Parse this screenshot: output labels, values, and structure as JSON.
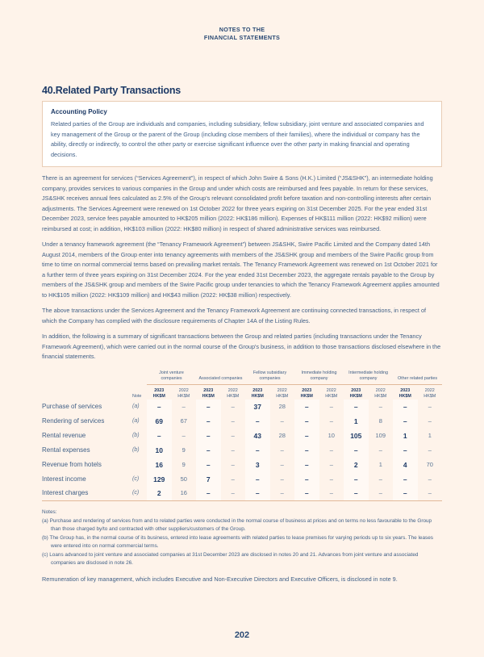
{
  "header": {
    "line1": "NOTES TO THE",
    "line2": "FINANCIAL STATEMENTS"
  },
  "title": "40.Related Party Transactions",
  "policy": {
    "heading": "Accounting Policy",
    "text": "Related parties of the Group are individuals and companies, including subsidiary, fellow subsidiary, joint venture and associated companies and key management of the Group or the parent of the Group (including close members of their families), where the individual or company has the ability, directly or indirectly, to control the other party or exercise significant influence over the other party in making financial and operating decisions."
  },
  "paragraphs": [
    "There is an agreement for services (“Services Agreement”), in respect of which John Swire & Sons (H.K.) Limited (“JS&SHK”), an intermediate holding company, provides services to various companies in the Group and under which costs are reimbursed and fees payable. In return for these services, JS&SHK receives annual fees calculated as 2.5% of the Group's relevant consolidated profit before taxation and non-controlling interests after certain adjustments. The Services Agreement were renewed on 1st October 2022 for three years expiring on 31st December 2025. For the year ended 31st December 2023, service fees payable amounted to HK$205 million (2022: HK$186 million). Expenses of HK$111 million (2022: HK$92 million) were reimbursed at cost; in addition, HK$103 million (2022: HK$80 million) in respect of shared administrative services was reimbursed.",
    "Under a tenancy framework agreement (the “Tenancy Framework Agreement”) between JS&SHK, Swire Pacific Limited and the Company dated 14th August 2014, members of the Group enter into tenancy agreements with members of the JS&SHK group and members of the Swire Pacific group from time to time on normal commercial terms based on prevailing market rentals. The Tenancy Framework Agreement was renewed on 1st October 2021 for a further term of three years expiring on 31st December 2024. For the year ended 31st December 2023, the aggregate rentals payable to the Group by members of the JS&SHK group and members of the Swire Pacific group under tenancies to which the Tenancy Framework Agreement applies amounted to HK$105 million (2022: HK$109 million) and HK$43 million (2022: HK$38 million) respectively.",
    "The above transactions under the Services Agreement and the Tenancy Framework Agreement are continuing connected transactions, in respect of which the Company has complied with the disclosure requirements of Chapter 14A of the Listing Rules.",
    "In addition, the following is a summary of significant transactions between the Group and related parties (including transactions under the Tenancy Framework Agreement), which were carried out in the normal course of the Group's business, in addition to those transactions disclosed elsewhere in the financial statements."
  ],
  "table": {
    "groups": [
      "Joint venture companies",
      "Associated companies",
      "Fellow subsidiary companies",
      "Immediate holding company",
      "Intermediate holding company",
      "Other related parties"
    ],
    "note_label": "Note",
    "year_2023": "2023",
    "year_2022": "2022",
    "unit": "HK$M",
    "rows": [
      {
        "label": "Purchase of services",
        "note": "(a)",
        "values": [
          "–",
          "–",
          "–",
          "–",
          "37",
          "28",
          "–",
          "–",
          "–",
          "–",
          "–",
          "–"
        ]
      },
      {
        "label": "Rendering of services",
        "note": "(a)",
        "values": [
          "69",
          "67",
          "–",
          "–",
          "–",
          "–",
          "–",
          "–",
          "1",
          "8",
          "–",
          "–"
        ]
      },
      {
        "label": "Rental revenue",
        "note": "(b)",
        "values": [
          "–",
          "–",
          "–",
          "–",
          "43",
          "28",
          "–",
          "10",
          "105",
          "109",
          "1",
          "1"
        ]
      },
      {
        "label": "Rental expenses",
        "note": "(b)",
        "values": [
          "10",
          "9",
          "–",
          "–",
          "–",
          "–",
          "–",
          "–",
          "–",
          "–",
          "–",
          "–"
        ]
      },
      {
        "label": "Revenue from hotels",
        "note": "",
        "values": [
          "16",
          "9",
          "–",
          "–",
          "3",
          "–",
          "–",
          "–",
          "2",
          "1",
          "4",
          "70"
        ]
      },
      {
        "label": "Interest income",
        "note": "(c)",
        "values": [
          "129",
          "50",
          "7",
          "–",
          "–",
          "–",
          "–",
          "–",
          "–",
          "–",
          "–",
          "–"
        ]
      },
      {
        "label": "Interest charges",
        "note": "(c)",
        "values": [
          "2",
          "16",
          "–",
          "–",
          "–",
          "–",
          "–",
          "–",
          "–",
          "–",
          "–",
          "–"
        ]
      }
    ]
  },
  "notes": {
    "heading": "Notes:",
    "items": [
      "(a) Purchase and rendering of services from and to related parties were conducted in the normal course of business at prices and on terms no less favourable to the Group than those charged by/to and contracted with other suppliers/customers of the Group.",
      "(b) The Group has, in the normal course of its business, entered into lease agreements with related parties to lease premises for varying periods up to six years. The leases were entered into on normal commercial terms.",
      "(c) Loans advanced to joint venture and associated companies at 31st December 2023 are disclosed in notes 20 and 21. Advances from joint venture and associated companies are disclosed in note 26."
    ]
  },
  "remuneration": "Remuneration of key management, which includes Executive and Non-Executive Directors and Executive Officers, is disclosed in note 9.",
  "page_number": "202"
}
